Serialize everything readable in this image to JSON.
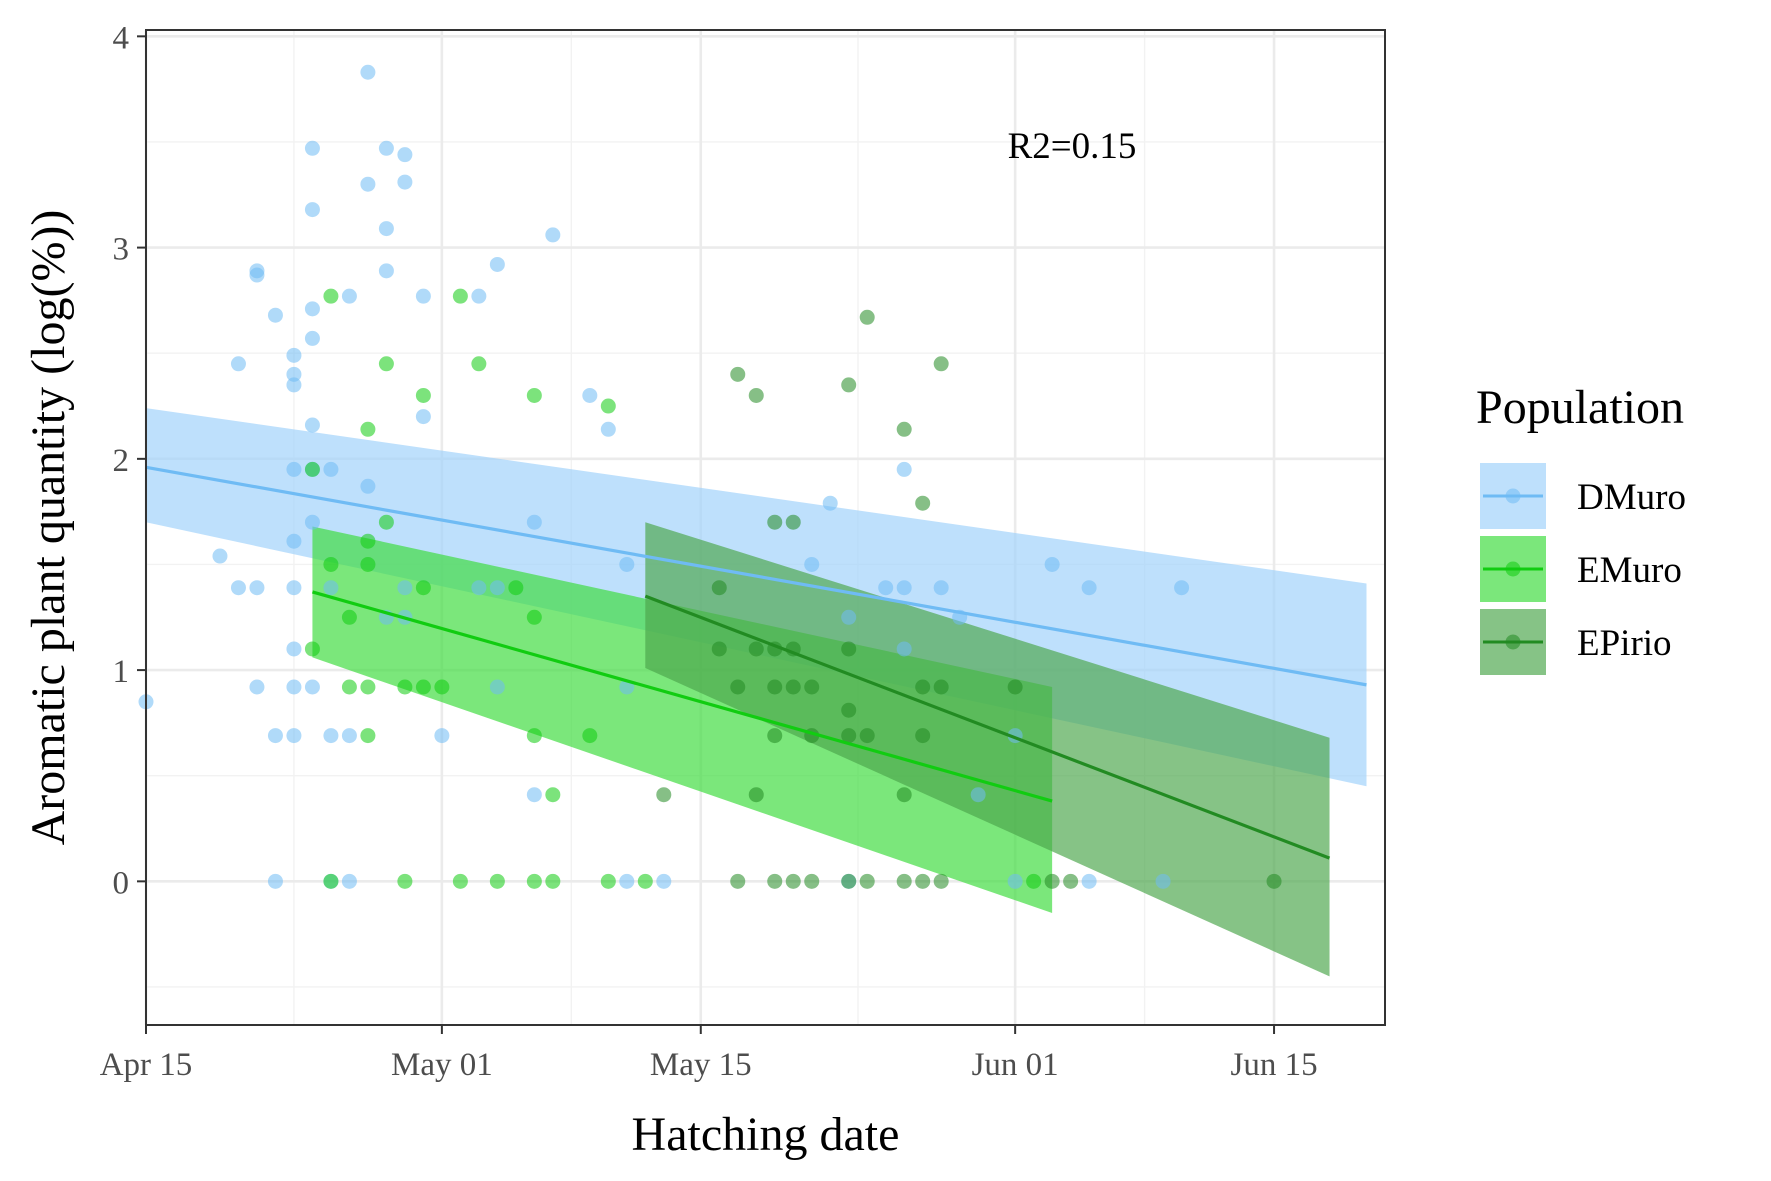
{
  "chart_data": {
    "type": "scatter",
    "title": "",
    "xlabel": "Hatching date",
    "ylabel": "Aromatic plant quantity (log(%))",
    "x_axis": {
      "type": "date",
      "min": "2021-04-15",
      "max": "2021-06-21",
      "ticks": [
        {
          "date": "2021-04-15",
          "label": "Apr 15"
        },
        {
          "date": "2021-05-01",
          "label": "May 01"
        },
        {
          "date": "2021-05-15",
          "label": "May 15"
        },
        {
          "date": "2021-06-01",
          "label": "Jun 01"
        },
        {
          "date": "2021-06-15",
          "label": "Jun 15"
        }
      ]
    },
    "y_axis": {
      "min": -0.68,
      "max": 4.03,
      "ticks": [
        0,
        1,
        2,
        3,
        4
      ]
    },
    "grid": true,
    "legend": {
      "title": "Population",
      "position": "right"
    },
    "annotation": "R2=0.15",
    "series": [
      {
        "name": "DMuro",
        "color": "#6fbbf4",
        "fill": "#9fd1fb",
        "points": [
          [
            "2021-04-15",
            0.85
          ],
          [
            "2021-04-19",
            1.54
          ],
          [
            "2021-04-20",
            2.45
          ],
          [
            "2021-04-20",
            1.39
          ],
          [
            "2021-04-21",
            2.89
          ],
          [
            "2021-04-21",
            2.87
          ],
          [
            "2021-04-21",
            1.39
          ],
          [
            "2021-04-21",
            0.92
          ],
          [
            "2021-04-22",
            2.68
          ],
          [
            "2021-04-22",
            0.69
          ],
          [
            "2021-04-22",
            0
          ],
          [
            "2021-04-23",
            2.49
          ],
          [
            "2021-04-23",
            2.4
          ],
          [
            "2021-04-23",
            2.35
          ],
          [
            "2021-04-23",
            1.95
          ],
          [
            "2021-04-23",
            1.61
          ],
          [
            "2021-04-23",
            1.39
          ],
          [
            "2021-04-23",
            1.1
          ],
          [
            "2021-04-23",
            0.92
          ],
          [
            "2021-04-23",
            0.69
          ],
          [
            "2021-04-24",
            3.47
          ],
          [
            "2021-04-24",
            3.18
          ],
          [
            "2021-04-24",
            2.71
          ],
          [
            "2021-04-24",
            2.57
          ],
          [
            "2021-04-24",
            2.16
          ],
          [
            "2021-04-24",
            1.95
          ],
          [
            "2021-04-24",
            1.7
          ],
          [
            "2021-04-24",
            0.92
          ],
          [
            "2021-04-25",
            1.95
          ],
          [
            "2021-04-25",
            1.39
          ],
          [
            "2021-04-25",
            0.69
          ],
          [
            "2021-04-25",
            0
          ],
          [
            "2021-04-26",
            2.77
          ],
          [
            "2021-04-26",
            0.69
          ],
          [
            "2021-04-26",
            0
          ],
          [
            "2021-04-27",
            3.83
          ],
          [
            "2021-04-27",
            3.3
          ],
          [
            "2021-04-27",
            1.87
          ],
          [
            "2021-04-28",
            3.47
          ],
          [
            "2021-04-28",
            3.09
          ],
          [
            "2021-04-28",
            2.89
          ],
          [
            "2021-04-28",
            1.25
          ],
          [
            "2021-04-29",
            3.44
          ],
          [
            "2021-04-29",
            3.31
          ],
          [
            "2021-04-29",
            1.39
          ],
          [
            "2021-04-29",
            1.25
          ],
          [
            "2021-04-30",
            2.77
          ],
          [
            "2021-04-30",
            2.2
          ],
          [
            "2021-05-01",
            0.69
          ],
          [
            "2021-05-03",
            2.77
          ],
          [
            "2021-05-03",
            1.39
          ],
          [
            "2021-05-04",
            2.92
          ],
          [
            "2021-05-04",
            1.39
          ],
          [
            "2021-05-04",
            0.92
          ],
          [
            "2021-05-06",
            1.7
          ],
          [
            "2021-05-06",
            0.41
          ],
          [
            "2021-05-07",
            3.06
          ],
          [
            "2021-05-09",
            2.3
          ],
          [
            "2021-05-10",
            2.14
          ],
          [
            "2021-05-11",
            1.5
          ],
          [
            "2021-05-11",
            0.92
          ],
          [
            "2021-05-11",
            0
          ],
          [
            "2021-05-13",
            0
          ],
          [
            "2021-05-21",
            1.5
          ],
          [
            "2021-05-22",
            1.79
          ],
          [
            "2021-05-23",
            1.25
          ],
          [
            "2021-05-23",
            0
          ],
          [
            "2021-05-25",
            1.39
          ],
          [
            "2021-05-26",
            1.95
          ],
          [
            "2021-05-26",
            1.39
          ],
          [
            "2021-05-26",
            1.1
          ],
          [
            "2021-05-28",
            1.39
          ],
          [
            "2021-05-29",
            1.25
          ],
          [
            "2021-05-30",
            0.41
          ],
          [
            "2021-06-01",
            0.69
          ],
          [
            "2021-06-01",
            0
          ],
          [
            "2021-06-03",
            1.5
          ],
          [
            "2021-06-05",
            1.39
          ],
          [
            "2021-06-05",
            0
          ],
          [
            "2021-06-09",
            0
          ],
          [
            "2021-06-10",
            1.39
          ]
        ],
        "fit": {
          "x": [
            "2021-04-15",
            "2021-06-20"
          ],
          "y": [
            1.96,
            0.93
          ]
        },
        "ci": {
          "x": [
            "2021-04-15",
            "2021-06-20"
          ],
          "lower": [
            1.7,
            0.45
          ],
          "upper": [
            2.24,
            1.41
          ]
        }
      },
      {
        "name": "EMuro",
        "color": "#11cc11",
        "fill": "#3cdb3c",
        "points": [
          [
            "2021-04-24",
            1.95
          ],
          [
            "2021-04-24",
            1.1
          ],
          [
            "2021-04-25",
            2.77
          ],
          [
            "2021-04-25",
            1.5
          ],
          [
            "2021-04-25",
            0
          ],
          [
            "2021-04-26",
            1.25
          ],
          [
            "2021-04-26",
            0.92
          ],
          [
            "2021-04-27",
            2.14
          ],
          [
            "2021-04-27",
            1.61
          ],
          [
            "2021-04-27",
            1.5
          ],
          [
            "2021-04-27",
            0.92
          ],
          [
            "2021-04-27",
            0.69
          ],
          [
            "2021-04-28",
            2.45
          ],
          [
            "2021-04-28",
            1.7
          ],
          [
            "2021-04-29",
            0.92
          ],
          [
            "2021-04-29",
            0
          ],
          [
            "2021-04-30",
            2.3
          ],
          [
            "2021-04-30",
            1.39
          ],
          [
            "2021-04-30",
            0.92
          ],
          [
            "2021-05-01",
            0.92
          ],
          [
            "2021-05-02",
            2.77
          ],
          [
            "2021-05-02",
            0
          ],
          [
            "2021-05-03",
            2.45
          ],
          [
            "2021-05-04",
            0
          ],
          [
            "2021-05-05",
            1.39
          ],
          [
            "2021-05-06",
            2.3
          ],
          [
            "2021-05-06",
            1.25
          ],
          [
            "2021-05-06",
            0.69
          ],
          [
            "2021-05-06",
            0
          ],
          [
            "2021-05-07",
            0.41
          ],
          [
            "2021-05-07",
            0
          ],
          [
            "2021-05-09",
            0.69
          ],
          [
            "2021-05-10",
            2.25
          ],
          [
            "2021-05-10",
            0
          ],
          [
            "2021-05-12",
            0
          ],
          [
            "2021-06-02",
            0
          ]
        ],
        "fit": {
          "x": [
            "2021-04-24",
            "2021-06-03"
          ],
          "y": [
            1.37,
            0.38
          ]
        },
        "ci": {
          "x": [
            "2021-04-24",
            "2021-06-03"
          ],
          "lower": [
            1.06,
            -0.15
          ],
          "upper": [
            1.68,
            0.92
          ]
        }
      },
      {
        "name": "EPirio",
        "color": "#228b22",
        "fill": "#4da64d",
        "points": [
          [
            "2021-05-13",
            0.41
          ],
          [
            "2021-05-16",
            1.39
          ],
          [
            "2021-05-16",
            1.1
          ],
          [
            "2021-05-17",
            2.4
          ],
          [
            "2021-05-17",
            0.92
          ],
          [
            "2021-05-17",
            0
          ],
          [
            "2021-05-18",
            2.3
          ],
          [
            "2021-05-18",
            1.1
          ],
          [
            "2021-05-18",
            0.41
          ],
          [
            "2021-05-19",
            1.7
          ],
          [
            "2021-05-19",
            1.1
          ],
          [
            "2021-05-19",
            0.92
          ],
          [
            "2021-05-19",
            0.69
          ],
          [
            "2021-05-19",
            0
          ],
          [
            "2021-05-20",
            1.7
          ],
          [
            "2021-05-20",
            1.1
          ],
          [
            "2021-05-20",
            0.92
          ],
          [
            "2021-05-20",
            0
          ],
          [
            "2021-05-21",
            0.92
          ],
          [
            "2021-05-21",
            0.69
          ],
          [
            "2021-05-21",
            0
          ],
          [
            "2021-05-23",
            2.35
          ],
          [
            "2021-05-23",
            1.1
          ],
          [
            "2021-05-23",
            0.81
          ],
          [
            "2021-05-23",
            0.69
          ],
          [
            "2021-05-23",
            0
          ],
          [
            "2021-05-24",
            2.67
          ],
          [
            "2021-05-24",
            0.69
          ],
          [
            "2021-05-24",
            0
          ],
          [
            "2021-05-26",
            2.14
          ],
          [
            "2021-05-26",
            0.41
          ],
          [
            "2021-05-26",
            0
          ],
          [
            "2021-05-27",
            1.79
          ],
          [
            "2021-05-27",
            0.92
          ],
          [
            "2021-05-27",
            0.69
          ],
          [
            "2021-05-27",
            0
          ],
          [
            "2021-05-28",
            2.45
          ],
          [
            "2021-05-28",
            0.92
          ],
          [
            "2021-05-28",
            0
          ],
          [
            "2021-06-01",
            0.92
          ],
          [
            "2021-06-03",
            0
          ],
          [
            "2021-06-04",
            0
          ],
          [
            "2021-06-15",
            0
          ]
        ],
        "fit": {
          "x": [
            "2021-05-12",
            "2021-06-18"
          ],
          "y": [
            1.35,
            0.11
          ]
        },
        "ci": {
          "x": [
            "2021-05-12",
            "2021-06-18"
          ],
          "lower": [
            1.01,
            -0.45
          ],
          "upper": [
            1.7,
            0.68
          ]
        }
      }
    ]
  }
}
